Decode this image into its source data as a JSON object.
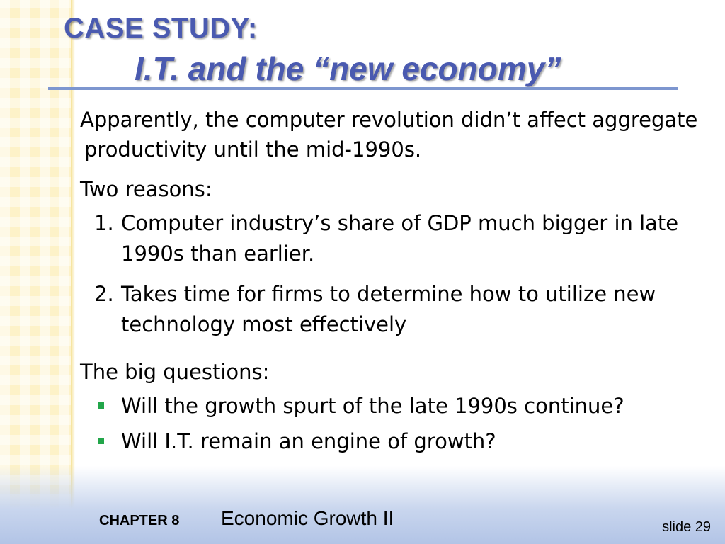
{
  "header": {
    "title_line1": "CASE STUDY:",
    "title_line2": "I.T. and the “new economy”"
  },
  "body": {
    "intro": "Apparently, the computer revolution didn’t affect aggregate productivity until the mid-1990s.",
    "reasons_heading": "Two reasons:",
    "reasons": [
      {
        "number": "1.",
        "text": "Computer industry’s share of GDP much bigger in late 1990s than earlier."
      },
      {
        "number": "2.",
        "text": "Takes time for firms to determine how to utilize new technology most effectively"
      }
    ],
    "questions_heading": "The big questions:",
    "questions": [
      "Will the growth spurt of the late 1990s continue?",
      "Will I.T. remain an engine of growth?"
    ]
  },
  "footer": {
    "chapter": "CHAPTER 8",
    "chapter_title": "Economic Growth II",
    "slide_number": "slide 29"
  },
  "colors": {
    "title": "#4a5ab0",
    "rule": "#7d96cf",
    "bullet": "#22a64a"
  }
}
